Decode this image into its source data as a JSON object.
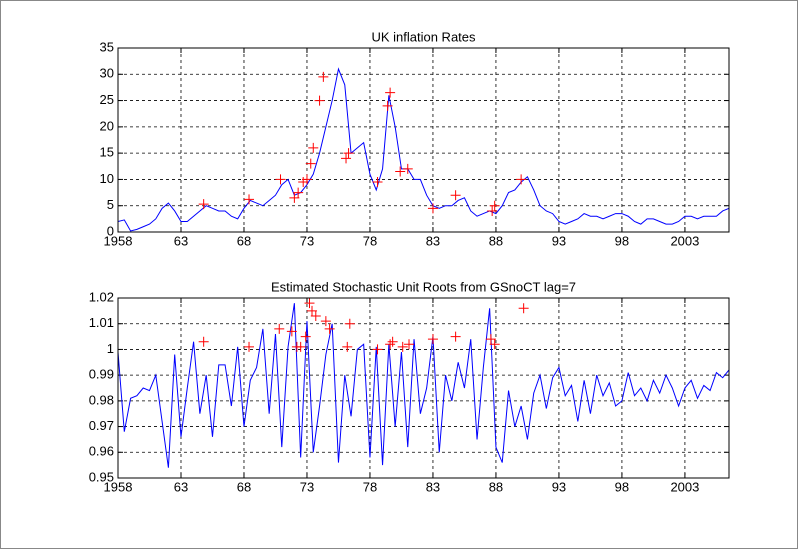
{
  "chart_data": [
    {
      "type": "line",
      "title": "UK inflation Rates",
      "xlim": [
        1958,
        2006.5
      ],
      "ylim": [
        0,
        35
      ],
      "xticks": [
        1958,
        {
          "value": 1963,
          "label": "63"
        },
        {
          "value": 1968,
          "label": "68"
        },
        {
          "value": 1973,
          "label": "73"
        },
        {
          "value": 1978,
          "label": "78"
        },
        {
          "value": 1983,
          "label": "83"
        },
        {
          "value": 1988,
          "label": "88"
        },
        {
          "value": 1993,
          "label": "93"
        },
        {
          "value": 1998,
          "label": "98"
        },
        2003
      ],
      "yticks": [
        0,
        5,
        10,
        15,
        20,
        25,
        30,
        35
      ],
      "grid": true,
      "x": [
        1958,
        1958.5,
        1959,
        1959.5,
        1960,
        1960.5,
        1961,
        1961.5,
        1962,
        1962.5,
        1963,
        1963.5,
        1964,
        1964.5,
        1965,
        1965.5,
        1966,
        1966.5,
        1967,
        1967.5,
        1968,
        1968.5,
        1969,
        1969.5,
        1970,
        1970.5,
        1971,
        1971.5,
        1972,
        1972.5,
        1973,
        1973.5,
        1974,
        1974.5,
        1975,
        1975.5,
        1976,
        1976.5,
        1977,
        1977.5,
        1978,
        1978.5,
        1979,
        1979.5,
        1980,
        1980.5,
        1981,
        1981.5,
        1982,
        1982.5,
        1983,
        1983.5,
        1984,
        1984.5,
        1985,
        1985.5,
        1986,
        1986.5,
        1987,
        1987.5,
        1988,
        1988.5,
        1989,
        1989.5,
        1990,
        1990.5,
        1991,
        1991.5,
        1992,
        1992.5,
        1993,
        1993.5,
        1994,
        1994.5,
        1995,
        1995.5,
        1996,
        1996.5,
        1997,
        1997.5,
        1998,
        1998.5,
        1999,
        1999.5,
        2000,
        2000.5,
        2001,
        2001.5,
        2002,
        2002.5,
        2003,
        2003.5,
        2004,
        2004.5,
        2005,
        2005.5,
        2006,
        2006.5
      ],
      "series": [
        {
          "color": "#0000ff",
          "values": [
            2,
            2.3,
            0.2,
            0.5,
            1,
            1.5,
            2.5,
            4.5,
            5.5,
            4,
            2,
            2,
            3,
            4,
            5,
            4.5,
            4,
            4,
            3,
            2.5,
            4.5,
            6,
            5.5,
            5,
            6,
            7,
            9,
            10,
            7,
            7.5,
            9,
            11,
            15,
            20,
            25,
            31,
            28,
            15,
            16,
            17,
            11,
            8,
            12,
            26,
            20,
            12,
            12,
            10,
            10,
            7,
            5,
            4.5,
            5,
            5,
            6,
            6.5,
            4,
            3,
            3.5,
            4,
            3.5,
            5,
            7.5,
            8,
            9.5,
            10.5,
            8,
            5,
            4,
            3.5,
            2,
            1.5,
            2,
            2.5,
            3.5,
            3,
            3,
            2.5,
            3,
            3.5,
            3.5,
            3,
            2,
            1.5,
            2.5,
            2.5,
            2,
            1.5,
            1.5,
            2,
            3,
            3,
            2.5,
            3,
            3,
            3,
            4,
            4.5
          ]
        },
        {
          "color": "#ff0000",
          "marker": "+",
          "x": [
            1964.8,
            1968.4,
            1970.9,
            1972,
            1972.3,
            1972.7,
            1973,
            1973.3,
            1973.5,
            1974,
            1974.3,
            1976.1,
            1976.3,
            1978.6,
            1979.4,
            1979.6,
            1980.4,
            1981,
            1983,
            1984.8,
            1987.7,
            1987.9,
            1990
          ],
          "values": [
            5.3,
            6.2,
            10,
            6.5,
            7.5,
            9.5,
            10,
            13,
            16,
            25,
            29.5,
            14,
            15,
            9.5,
            24,
            26.5,
            11.5,
            12,
            4.5,
            7,
            4,
            5,
            10
          ]
        }
      ]
    },
    {
      "type": "line",
      "title": "Estimated Stochastic Unit Roots from GSnoCT lag=7",
      "xlim": [
        1958,
        2006.5
      ],
      "ylim": [
        0.95,
        1.02
      ],
      "xticks": [
        1958,
        {
          "value": 1963,
          "label": "63"
        },
        {
          "value": 1968,
          "label": "68"
        },
        {
          "value": 1973,
          "label": "73"
        },
        {
          "value": 1978,
          "label": "78"
        },
        {
          "value": 1983,
          "label": "83"
        },
        {
          "value": 1988,
          "label": "88"
        },
        {
          "value": 1993,
          "label": "93"
        },
        {
          "value": 1998,
          "label": "98"
        },
        2003
      ],
      "yticks": [
        0.95,
        0.96,
        0.97,
        0.98,
        0.99,
        1,
        1.01,
        1.02
      ],
      "grid": true,
      "x": [
        1958,
        1958.5,
        1959,
        1959.5,
        1960,
        1960.5,
        1961,
        1961.5,
        1962,
        1962.5,
        1963,
        1963.5,
        1964,
        1964.5,
        1965,
        1965.5,
        1966,
        1966.5,
        1967,
        1967.5,
        1968,
        1968.5,
        1969,
        1969.5,
        1970,
        1970.5,
        1971,
        1971.5,
        1972,
        1972.5,
        1973,
        1973.5,
        1974,
        1974.5,
        1975,
        1975.5,
        1976,
        1976.5,
        1977,
        1977.5,
        1978,
        1978.5,
        1979,
        1979.5,
        1980,
        1980.5,
        1981,
        1981.5,
        1982,
        1982.5,
        1983,
        1983.5,
        1984,
        1984.5,
        1985,
        1985.5,
        1986,
        1986.5,
        1987,
        1987.5,
        1988,
        1988.5,
        1989,
        1989.5,
        1990,
        1990.5,
        1991,
        1991.5,
        1992,
        1992.5,
        1993,
        1993.5,
        1994,
        1994.5,
        1995,
        1995.5,
        1996,
        1996.5,
        1997,
        1997.5,
        1998,
        1998.5,
        1999,
        1999.5,
        2000,
        2000.5,
        2001,
        2001.5,
        2002,
        2002.5,
        2003,
        2003.5,
        2004,
        2004.5,
        2005,
        2005.5,
        2006,
        2006.5
      ],
      "series": [
        {
          "color": "#0000ff",
          "values": [
            0.999,
            0.968,
            0.981,
            0.982,
            0.985,
            0.984,
            0.99,
            0.972,
            0.954,
            0.998,
            0.966,
            0.985,
            1.003,
            0.975,
            0.99,
            0.966,
            0.994,
            0.994,
            0.978,
            1.001,
            0.97,
            0.988,
            0.993,
            1.008,
            0.975,
            1.006,
            0.962,
            1.001,
            1.018,
            0.958,
            1.011,
            0.96,
            0.978,
            0.998,
            1.01,
            0.956,
            0.99,
            0.974,
            1.0,
            1.002,
            0.958,
            1.001,
            0.955,
            1.002,
            0.97,
            0.999,
            0.962,
            1.004,
            0.975,
            0.985,
            1.005,
            0.96,
            0.99,
            0.98,
            0.995,
            0.985,
            1.004,
            0.965,
            0.993,
            1.016,
            0.962,
            0.956,
            0.984,
            0.97,
            0.978,
            0.965,
            0.983,
            0.99,
            0.977,
            0.989,
            0.993,
            0.982,
            0.986,
            0.972,
            0.988,
            0.975,
            0.99,
            0.982,
            0.987,
            0.978,
            0.98,
            0.991,
            0.982,
            0.985,
            0.98,
            0.988,
            0.983,
            0.99,
            0.985,
            0.978,
            0.985,
            0.988,
            0.981,
            0.986,
            0.984,
            0.991,
            0.989,
            0.992
          ]
        },
        {
          "color": "#ff0000",
          "marker": "+",
          "x": [
            1964.8,
            1968.4,
            1970.8,
            1971.8,
            1972.2,
            1972.5,
            1972.9,
            1973.2,
            1973.4,
            1973.7,
            1974.5,
            1974.8,
            1976.2,
            1976.4,
            1978.6,
            1979.6,
            1979.8,
            1980.6,
            1981.1,
            1983,
            1984.8,
            1987.6,
            1987.9,
            1990.2
          ],
          "values": [
            1.003,
            1.001,
            1.008,
            1.007,
            1.001,
            1.001,
            1.005,
            1.018,
            1.015,
            1.013,
            1.011,
            1.008,
            1.001,
            1.01,
            1.0,
            1.002,
            1.003,
            1.001,
            1.002,
            1.004,
            1.005,
            1.004,
            1.002,
            1.016
          ]
        }
      ]
    }
  ]
}
